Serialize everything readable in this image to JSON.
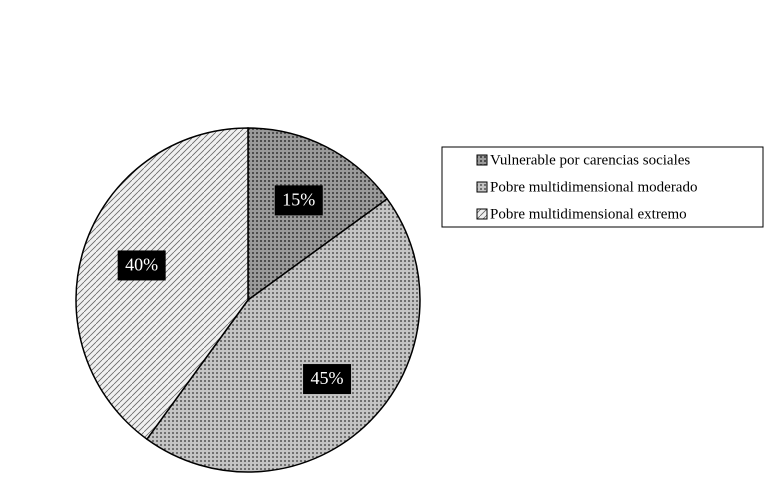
{
  "chart_data": {
    "type": "pie",
    "categories": [
      "Vulnerable por carencias sociales",
      "Pobre multidimensional moderado",
      "Pobre multidimensional extremo"
    ],
    "values": [
      15,
      45,
      40
    ],
    "value_labels": [
      "15%",
      "45%",
      "40%"
    ],
    "colors": [
      "#9a9a9a",
      "#c4c4c4",
      "#f0f0f0"
    ],
    "legend": "right"
  }
}
